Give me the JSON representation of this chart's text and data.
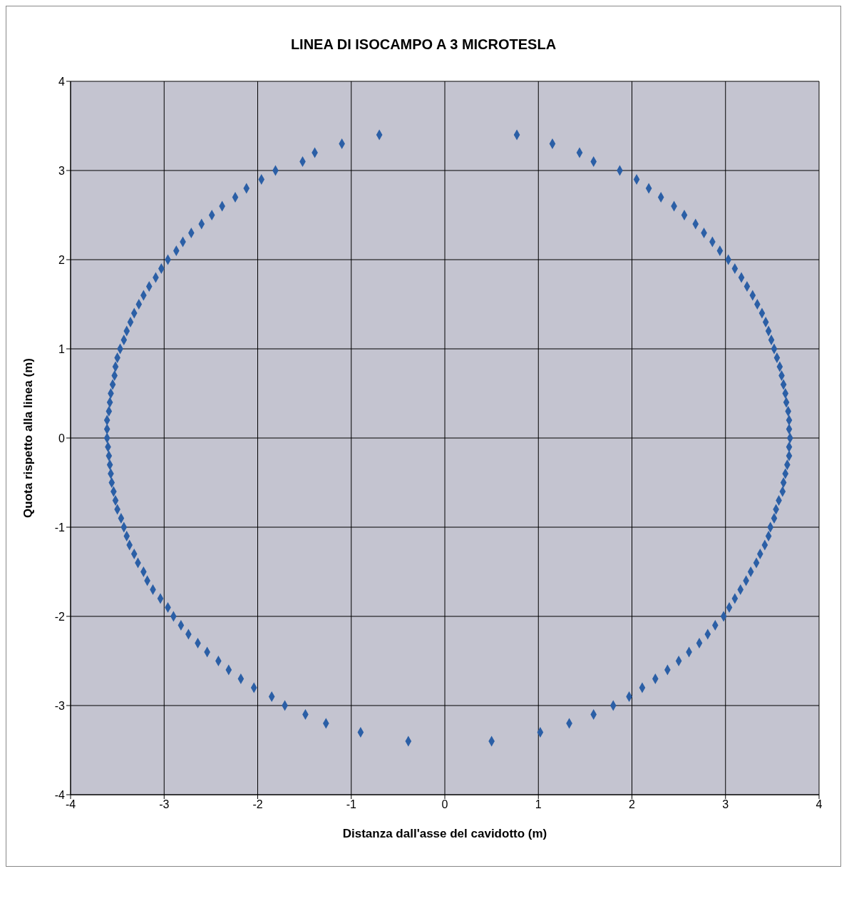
{
  "chart_data": {
    "type": "scatter",
    "title": "LINEA DI ISOCAMPO A 3 MICROTESLA",
    "xlabel": "Distanza dall'asse del cavidotto (m)",
    "ylabel": "Quota rispetto alla linea (m)",
    "x": [
      -0.7,
      -1.1,
      -1.39,
      -1.52,
      -1.81,
      -1.96,
      -2.12,
      -2.24,
      -2.38,
      -2.49,
      -2.6,
      -2.71,
      -2.8,
      -2.87,
      -2.96,
      -3.03,
      -3.09,
      -3.16,
      -3.22,
      -3.27,
      -3.32,
      -3.36,
      -3.4,
      -3.43,
      -3.47,
      -3.5,
      -3.52,
      -3.53,
      -3.55,
      -3.57,
      -3.58,
      -3.59,
      -3.61,
      -3.61,
      -3.61,
      -3.6,
      -3.59,
      -3.58,
      -3.57,
      -3.56,
      -3.54,
      -3.52,
      -3.5,
      -3.46,
      -3.43,
      -3.4,
      -3.37,
      -3.32,
      -3.28,
      -3.22,
      -3.18,
      -3.12,
      -3.04,
      -2.96,
      -2.9,
      -2.82,
      -2.74,
      -2.64,
      -2.54,
      -2.42,
      -2.31,
      -2.18,
      -2.04,
      -1.85,
      -1.71,
      -1.49,
      -1.27,
      -0.9,
      -0.39,
      0.77,
      1.15,
      1.44,
      1.59,
      1.87,
      2.05,
      2.18,
      2.31,
      2.45,
      2.56,
      2.68,
      2.77,
      2.86,
      2.94,
      3.03,
      3.1,
      3.17,
      3.23,
      3.29,
      3.34,
      3.39,
      3.43,
      3.46,
      3.49,
      3.52,
      3.55,
      3.58,
      3.6,
      3.62,
      3.64,
      3.65,
      3.67,
      3.68,
      3.68,
      3.69,
      3.68,
      3.68,
      3.66,
      3.64,
      3.62,
      3.61,
      3.57,
      3.54,
      3.52,
      3.48,
      3.46,
      3.42,
      3.37,
      3.33,
      3.27,
      3.22,
      3.16,
      3.1,
      3.04,
      2.98,
      2.89,
      2.81,
      2.72,
      2.61,
      2.5,
      2.38,
      2.25,
      2.11,
      1.97,
      1.8,
      1.59,
      1.33,
      1.02,
      0.5
    ],
    "series": [
      {
        "color": "#2b5fa6",
        "values": [
          3.4,
          3.3,
          3.2,
          3.1,
          3.0,
          2.9,
          2.8,
          2.7,
          2.6,
          2.5,
          2.4,
          2.3,
          2.2,
          2.1,
          2.0,
          1.9,
          1.8,
          1.7,
          1.6,
          1.5,
          1.4,
          1.3,
          1.2,
          1.1,
          1.0,
          0.9,
          0.8,
          0.7,
          0.6,
          0.5,
          0.4,
          0.3,
          0.2,
          0.1,
          0.0,
          -0.1,
          -0.2,
          -0.3,
          -0.4,
          -0.5,
          -0.6,
          -0.7,
          -0.8,
          -0.9,
          -1.0,
          -1.1,
          -1.2,
          -1.3,
          -1.4,
          -1.5,
          -1.6,
          -1.7,
          -1.8,
          -1.9,
          -2.0,
          -2.1,
          -2.2,
          -2.3,
          -2.4,
          -2.5,
          -2.6,
          -2.7,
          -2.8,
          -2.9,
          -3.0,
          -3.1,
          -3.2,
          -3.3,
          -3.4,
          3.4,
          3.3,
          3.2,
          3.1,
          3.0,
          2.9,
          2.8,
          2.7,
          2.6,
          2.5,
          2.4,
          2.3,
          2.2,
          2.1,
          2.0,
          1.9,
          1.8,
          1.7,
          1.6,
          1.5,
          1.4,
          1.3,
          1.2,
          1.1,
          1.0,
          0.9,
          0.8,
          0.7,
          0.6,
          0.5,
          0.4,
          0.3,
          0.2,
          0.1,
          0.0,
          -0.1,
          -0.2,
          -0.3,
          -0.4,
          -0.5,
          -0.6,
          -0.7,
          -0.8,
          -0.9,
          -1.0,
          -1.1,
          -1.2,
          -1.3,
          -1.4,
          -1.5,
          -1.6,
          -1.7,
          -1.8,
          -1.9,
          -2.0,
          -2.1,
          -2.2,
          -2.3,
          -2.4,
          -2.5,
          -2.6,
          -2.7,
          -2.8,
          -2.9,
          -3.0,
          -3.1,
          -3.2,
          -3.3,
          -3.4
        ]
      }
    ],
    "xlim": [
      -4,
      4
    ],
    "ylim": [
      -4,
      4
    ],
    "xticks": [
      -4,
      -3,
      -2,
      -1,
      0,
      1,
      2,
      3,
      4
    ],
    "yticks": [
      -4,
      -3,
      -2,
      -1,
      0,
      1,
      2,
      3,
      4
    ],
    "grid": true,
    "marker": "diamond"
  }
}
